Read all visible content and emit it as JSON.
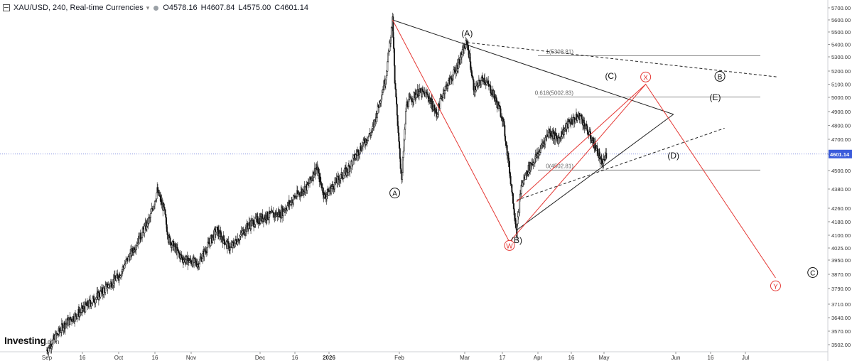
{
  "header": {
    "title": "XAU/USD, 240, Real-time Currencies",
    "open": "O4578.16",
    "high": "H4607.84",
    "low": "L4575.00",
    "close": "C4601.14"
  },
  "logo": {
    "main": "Investing",
    "suffix": ".com"
  },
  "colors": {
    "bull": "#111111",
    "bear": "#111111",
    "red_wave": "#e53935",
    "black_line": "#222222",
    "fib": "#888888",
    "price_line": "#5b6cd6",
    "price_tag": "#3b5bdb"
  },
  "chart_data": {
    "type": "candlestick",
    "symbol": "XAU/USD",
    "interval": "240",
    "last_price": 4601.14,
    "last_price_label": "4601.14",
    "y_ticks": [
      "5700.00",
      "5600.00",
      "5500.00",
      "5400.00",
      "5300.00",
      "5200.00",
      "5100.00",
      "5000.00",
      "4900.00",
      "4800.00",
      "4700.00",
      "4600.00",
      "4500.00",
      "4380.00",
      "4260.00",
      "4180.00",
      "4100.00",
      "4025.00",
      "3950.00",
      "3870.00",
      "3790.00",
      "3710.00",
      "3640.00",
      "3570.00",
      "3502.00"
    ],
    "x_ticks": [
      {
        "label": "Sep",
        "date": "2025-09-01"
      },
      {
        "label": "16",
        "date": "2025-09-16"
      },
      {
        "label": "Oct",
        "date": "2025-10-01"
      },
      {
        "label": "16",
        "date": "2025-10-16"
      },
      {
        "label": "Nov",
        "date": "2025-11-01"
      },
      {
        "label": "Dec",
        "date": "2025-12-01"
      },
      {
        "label": "16",
        "date": "2025-12-16"
      },
      {
        "label": "2026",
        "date": "2026-01-01"
      },
      {
        "label": "Feb",
        "date": "2026-02-01"
      },
      {
        "label": "Mar",
        "date": "2026-03-01"
      },
      {
        "label": "17",
        "date": "2026-03-17"
      },
      {
        "label": "Apr",
        "date": "2026-04-01"
      },
      {
        "label": "16",
        "date": "2026-04-16"
      },
      {
        "label": "May",
        "date": "2026-05-01"
      },
      {
        "label": "Jun",
        "date": "2026-06-01"
      },
      {
        "label": "16",
        "date": "2026-06-16"
      },
      {
        "label": "Jul",
        "date": "2026-07-01"
      }
    ],
    "price_path": [
      [
        "2025-09-01",
        3475
      ],
      [
        "2025-09-08",
        3600
      ],
      [
        "2025-09-16",
        3680
      ],
      [
        "2025-09-23",
        3760
      ],
      [
        "2025-10-01",
        3860
      ],
      [
        "2025-10-08",
        4040
      ],
      [
        "2025-10-14",
        4200
      ],
      [
        "2025-10-17",
        4370
      ],
      [
        "2025-10-20",
        4250
      ],
      [
        "2025-10-22",
        4080
      ],
      [
        "2025-10-28",
        3960
      ],
      [
        "2025-11-04",
        3930
      ],
      [
        "2025-11-12",
        4130
      ],
      [
        "2025-11-18",
        4020
      ],
      [
        "2025-11-26",
        4160
      ],
      [
        "2025-12-03",
        4210
      ],
      [
        "2025-12-10",
        4230
      ],
      [
        "2025-12-16",
        4330
      ],
      [
        "2025-12-22",
        4400
      ],
      [
        "2025-12-26",
        4520
      ],
      [
        "2025-12-30",
        4330
      ],
      [
        "2026-01-05",
        4440
      ],
      [
        "2026-01-09",
        4500
      ],
      [
        "2026-01-14",
        4620
      ],
      [
        "2026-01-20",
        4760
      ],
      [
        "2026-01-23",
        4950
      ],
      [
        "2026-01-26",
        5150
      ],
      [
        "2026-01-29",
        5590
      ],
      [
        "2026-01-30",
        5100
      ],
      [
        "2026-02-02",
        4420
      ],
      [
        "2026-02-04",
        4950
      ],
      [
        "2026-02-09",
        5040
      ],
      [
        "2026-02-13",
        5020
      ],
      [
        "2026-02-17",
        4880
      ],
      [
        "2026-02-20",
        5050
      ],
      [
        "2026-02-25",
        5200
      ],
      [
        "2026-03-02",
        5420
      ],
      [
        "2026-03-05",
        5050
      ],
      [
        "2026-03-09",
        5150
      ],
      [
        "2026-03-13",
        5030
      ],
      [
        "2026-03-17",
        4860
      ],
      [
        "2026-03-20",
        4500
      ],
      [
        "2026-03-23",
        4120
      ],
      [
        "2026-03-25",
        4400
      ],
      [
        "2026-03-28",
        4510
      ],
      [
        "2026-04-01",
        4600
      ],
      [
        "2026-04-06",
        4760
      ],
      [
        "2026-04-10",
        4700
      ],
      [
        "2026-04-15",
        4820
      ],
      [
        "2026-04-20",
        4870
      ],
      [
        "2026-04-24",
        4740
      ],
      [
        "2026-04-28",
        4620
      ],
      [
        "2026-04-30",
        4530
      ],
      [
        "2026-05-02",
        4601
      ]
    ],
    "fib_levels": [
      {
        "label": "1(5308.81)",
        "value": 5308.81
      },
      {
        "label": "0.618(5002.83)",
        "value": 5002.83
      },
      {
        "label": "0(4502.81)",
        "value": 4502.81
      }
    ],
    "wave_labels": {
      "A_circle": "A",
      "A_paren": "(A)",
      "B_paren": "(B)",
      "C_paren": "(C)",
      "D_paren": "(D)",
      "E_paren": "(E)",
      "B_circle": "B",
      "C_circle": "C",
      "W": "W",
      "X": "X",
      "Y": "Y"
    },
    "red_wave_path": [
      [
        "2026-01-29",
        5600
      ],
      [
        "2026-03-20",
        4060
      ],
      [
        "2026-05-19",
        5100
      ],
      [
        "2026-07-14",
        3850
      ]
    ],
    "red_corrective_path": [
      [
        "2026-03-23",
        4300
      ],
      [
        "2026-05-19",
        5100
      ]
    ],
    "triangle_upper": [
      [
        "2026-01-29",
        5600
      ],
      [
        "2026-05-31",
        4880
      ]
    ],
    "triangle_lower": [
      [
        "2026-03-23",
        4130
      ],
      [
        "2026-05-31",
        4880
      ]
    ],
    "dashed_upper": [
      [
        "2026-03-02",
        5415
      ],
      [
        "2026-07-15",
        5155
      ]
    ],
    "dashed_lower": [
      [
        "2026-03-23",
        4310
      ],
      [
        "2026-06-22",
        4780
      ]
    ]
  }
}
